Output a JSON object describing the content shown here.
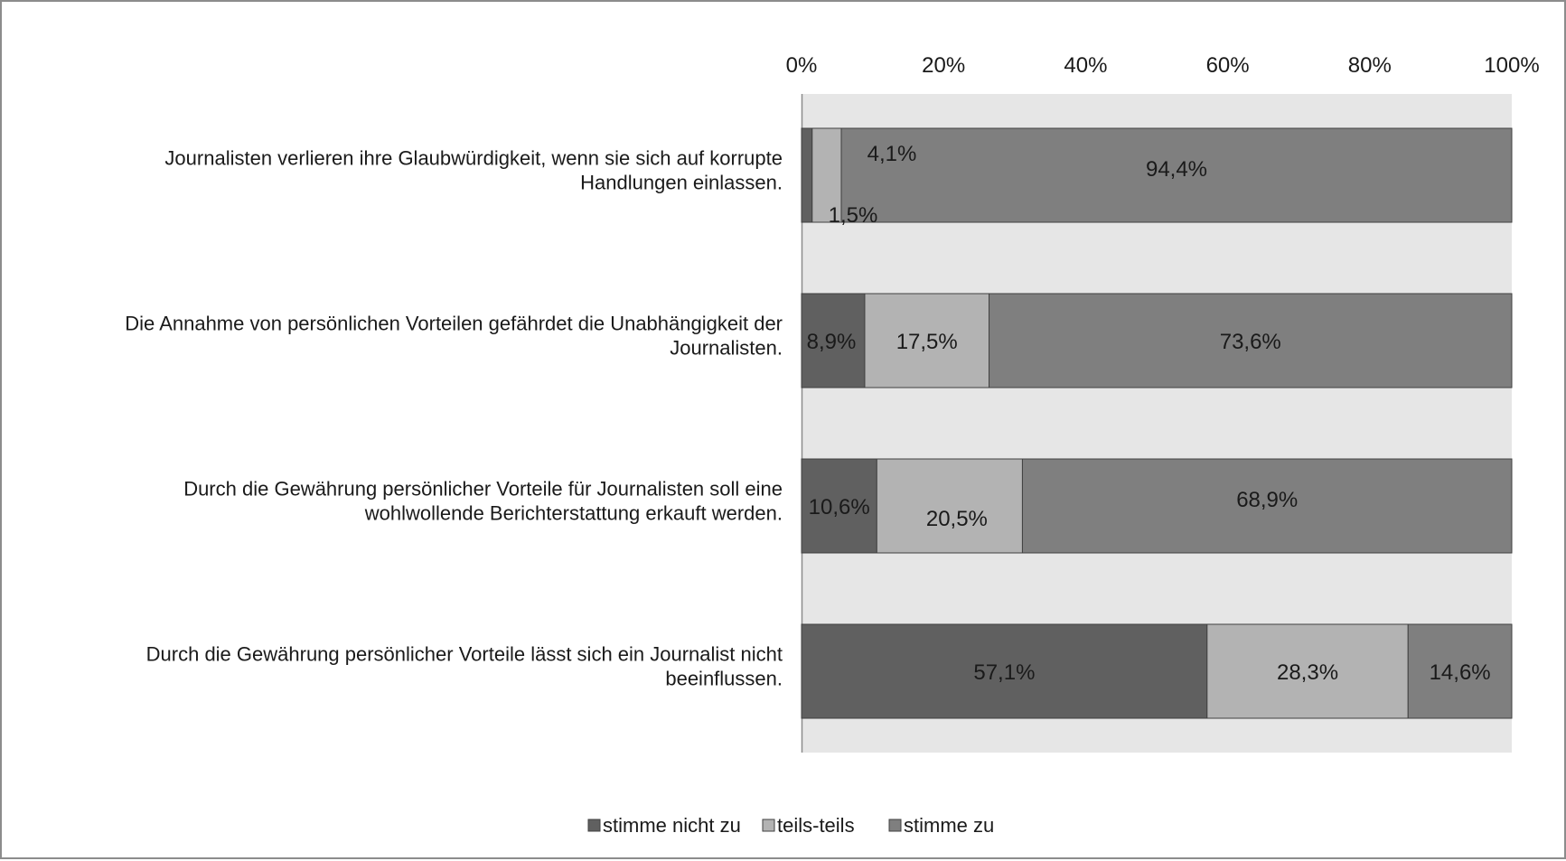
{
  "chart_data": {
    "type": "bar",
    "orientation": "horizontal",
    "stacked": "100%",
    "title": "",
    "xlabel": "",
    "ylabel": "",
    "xlim": [
      0,
      100
    ],
    "x_ticks": [
      "0%",
      "20%",
      "40%",
      "60%",
      "80%",
      "100%"
    ],
    "x_axis_position": "top",
    "grid": false,
    "legend_position": "bottom",
    "categories": [
      {
        "lines": [
          "Journalisten verlieren ihre Glaubwürdigkeit, wenn sie sich auf korrupte",
          "Handlungen einlassen."
        ]
      },
      {
        "lines": [
          "Die Annahme von persönlichen Vorteilen gefährdet die Unabhängigkeit der",
          "Journalisten."
        ]
      },
      {
        "lines": [
          "Durch die Gewährung persönlicher Vorteile für Journalisten soll eine",
          "wohlwollende Berichterstattung erkauft werden."
        ]
      },
      {
        "lines": [
          "Durch die Gewährung persönlicher Vorteile lässt sich ein Journalist nicht",
          "beeinflussen."
        ]
      }
    ],
    "series": [
      {
        "name": "stimme nicht zu",
        "color": "#606060",
        "values": [
          1.5,
          8.9,
          10.6,
          57.1
        ],
        "labels": [
          "1,5%",
          "8,9%",
          "10,6%",
          "57,1%"
        ]
      },
      {
        "name": "teils-teils",
        "color": "#b3b3b3",
        "values": [
          4.1,
          17.5,
          20.5,
          28.3
        ],
        "labels": [
          "4,1%",
          "17,5%",
          "20,5%",
          "28,3%"
        ]
      },
      {
        "name": "stimme zu",
        "color": "#7f7f7f",
        "values": [
          94.4,
          73.6,
          68.9,
          14.6
        ],
        "labels": [
          "94,4%",
          "73,6%",
          "68,9%",
          "14,6%"
        ]
      }
    ],
    "plot_background": "#e6e6e6",
    "bar_border_color": "#404040"
  }
}
